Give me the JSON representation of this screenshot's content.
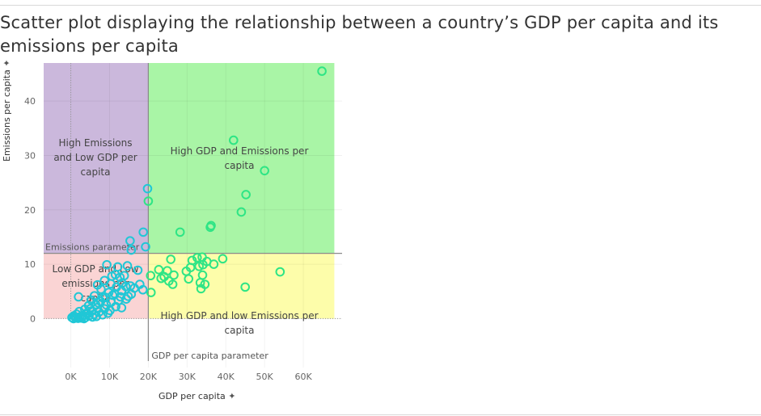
{
  "title": "Scatter plot displaying the relationship between a country’s GDP per capita and its emissions per capita",
  "chart_data": {
    "type": "scatter",
    "xlabel": "GDP per capita",
    "ylabel": "Emissions per capita",
    "xlim": [
      -7000,
      70000
    ],
    "ylim": [
      -9,
      47
    ],
    "x_ticks": [
      0,
      10000,
      20000,
      30000,
      40000,
      50000,
      60000
    ],
    "x_tick_labels": [
      "0K",
      "10K",
      "20K",
      "30K",
      "40K",
      "50K",
      "60K"
    ],
    "y_ticks": [
      0,
      10,
      20,
      30,
      40
    ],
    "y_tick_labels": [
      "0",
      "10",
      "20",
      "30",
      "40"
    ],
    "reference_lines": {
      "gdp_parameter": {
        "value": 20000,
        "label": "GDP per capita parameter"
      },
      "emissions_parameter": {
        "value": 12,
        "label": "Emissions parameter"
      }
    },
    "quadrants": [
      {
        "label": "High Emissions and Low GDP per capita",
        "x": [
          -7000,
          20000
        ],
        "y": [
          12,
          47
        ],
        "color": "#cbb8dc"
      },
      {
        "label": "High GDP and Emissions per capita",
        "x": [
          20000,
          68000
        ],
        "y": [
          12,
          47
        ],
        "color": "#a9f5a6"
      },
      {
        "label": "Low GDP and Low emissions per capita",
        "x": [
          -7000,
          20000
        ],
        "y": [
          0,
          12
        ],
        "color": "#fad4d4"
      },
      {
        "label": "High GDP and low Emissions per capita",
        "x": [
          20000,
          68000
        ],
        "y": [
          0,
          12
        ],
        "color": "#fdfdaa"
      }
    ],
    "quadrant_label_lines": [
      [
        "High Emissions",
        "and Low GDP per",
        "capita"
      ],
      [
        "High GDP and Emissions per",
        "capita"
      ],
      [
        "Low GDP and Low",
        "emissions per",
        "capita"
      ],
      [
        "High GDP and low Emissions per",
        "capita"
      ]
    ],
    "points": [
      [
        64800,
        45.5
      ],
      [
        42000,
        32.8
      ],
      [
        50000,
        27.2
      ],
      [
        45200,
        22.8
      ],
      [
        44000,
        19.6
      ],
      [
        36200,
        17.1
      ],
      [
        36000,
        16.8
      ],
      [
        28200,
        15.9
      ],
      [
        19800,
        23.9
      ],
      [
        20000,
        21.6
      ],
      [
        18700,
        15.9
      ],
      [
        19300,
        13.2
      ],
      [
        15300,
        14.3
      ],
      [
        15600,
        12.6
      ],
      [
        25800,
        10.9
      ],
      [
        32600,
        11.2
      ],
      [
        33900,
        11.3
      ],
      [
        31300,
        10.7
      ],
      [
        35100,
        10.5
      ],
      [
        36900,
        10.0
      ],
      [
        39200,
        11.0
      ],
      [
        34100,
        9.9
      ],
      [
        33100,
        9.6
      ],
      [
        30900,
        9.4
      ],
      [
        29800,
        8.7
      ],
      [
        34000,
        8.0
      ],
      [
        22700,
        9.0
      ],
      [
        24900,
        8.8
      ],
      [
        26600,
        8.0
      ],
      [
        24100,
        7.7
      ],
      [
        20600,
        7.9
      ],
      [
        23300,
        7.4
      ],
      [
        26300,
        6.3
      ],
      [
        25300,
        6.9
      ],
      [
        30400,
        7.3
      ],
      [
        34600,
        6.3
      ],
      [
        33400,
        6.6
      ],
      [
        33600,
        5.5
      ],
      [
        45000,
        5.8
      ],
      [
        54000,
        8.6
      ],
      [
        20700,
        4.8
      ],
      [
        9300,
        9.9
      ],
      [
        12100,
        9.5
      ],
      [
        14600,
        9.7
      ],
      [
        17300,
        8.9
      ],
      [
        11500,
        8.1
      ],
      [
        12700,
        7.6
      ],
      [
        10600,
        7.8
      ],
      [
        8700,
        7.0
      ],
      [
        13200,
        6.5
      ],
      [
        17800,
        6.3
      ],
      [
        15400,
        6.0
      ],
      [
        11800,
        5.8
      ],
      [
        14200,
        5.9
      ],
      [
        18600,
        5.3
      ],
      [
        16400,
        5.6
      ],
      [
        7800,
        5.4
      ],
      [
        13100,
        5.1
      ],
      [
        9800,
        4.8
      ],
      [
        15600,
        4.5
      ],
      [
        11300,
        4.6
      ],
      [
        14800,
        4.1
      ],
      [
        6100,
        4.2
      ],
      [
        2000,
        4.0
      ],
      [
        8300,
        3.8
      ],
      [
        12300,
        3.3
      ],
      [
        10400,
        3.0
      ],
      [
        14300,
        3.6
      ],
      [
        5300,
        3.4
      ],
      [
        7100,
        2.9
      ],
      [
        9200,
        2.5
      ],
      [
        11600,
        2.2
      ],
      [
        13100,
        2.0
      ],
      [
        4600,
        2.4
      ],
      [
        6800,
        2.0
      ],
      [
        8700,
        1.8
      ],
      [
        10100,
        1.5
      ],
      [
        3600,
        1.7
      ],
      [
        5400,
        1.4
      ],
      [
        7300,
        1.2
      ],
      [
        9600,
        1.0
      ],
      [
        2200,
        1.3
      ],
      [
        4100,
        1.0
      ],
      [
        6000,
        0.8
      ],
      [
        8200,
        0.7
      ],
      [
        1500,
        0.8
      ],
      [
        3100,
        0.6
      ],
      [
        4700,
        0.5
      ],
      [
        6600,
        0.4
      ],
      [
        800,
        0.5
      ],
      [
        2300,
        0.3
      ],
      [
        3800,
        0.2
      ],
      [
        5600,
        0.3
      ],
      [
        300,
        0.2
      ],
      [
        1400,
        0.1
      ],
      [
        2800,
        0.1
      ],
      [
        700,
        0.0
      ],
      [
        1900,
        0.05
      ],
      [
        3400,
        0.0
      ],
      [
        1100,
        0.3
      ],
      [
        4300,
        0.9
      ],
      [
        5000,
        1.8
      ],
      [
        6400,
        2.6
      ],
      [
        7700,
        3.2
      ],
      [
        9000,
        3.9
      ],
      [
        10800,
        4.3
      ],
      [
        12800,
        4.0
      ],
      [
        6900,
        6.2
      ],
      [
        10300,
        6.4
      ],
      [
        13800,
        7.9
      ]
    ]
  }
}
